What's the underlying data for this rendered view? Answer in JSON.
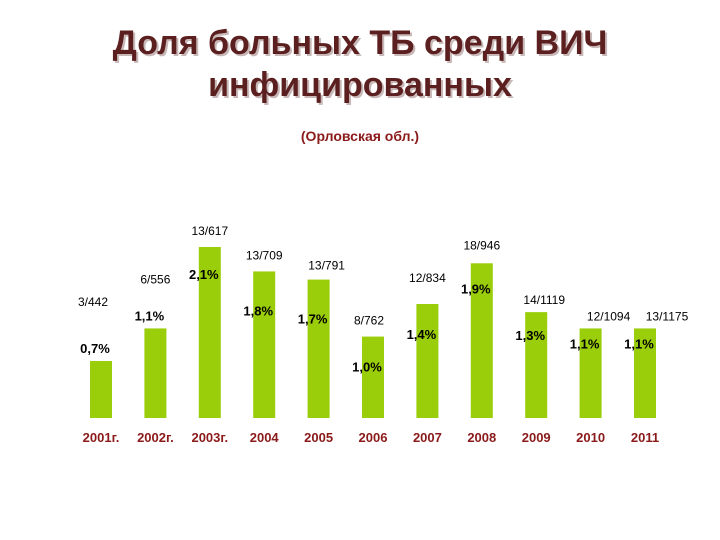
{
  "title_line1": "Доля больных ТБ среди ВИЧ",
  "title_line2": "инфицированных",
  "subtitle": "(Орловская обл.)",
  "colors": {
    "bar": "#9acd0a",
    "title": "#5b1f1f",
    "year": "#8b1a1a"
  },
  "chart_data": {
    "type": "bar",
    "categories": [
      "2001г.",
      "2002г.",
      "2003г.",
      "2004",
      "2005",
      "2006",
      "2007",
      "2008",
      "2009",
      "2010",
      "2011"
    ],
    "values": [
      0.7,
      1.1,
      2.1,
      1.8,
      1.7,
      1.0,
      1.4,
      1.9,
      1.3,
      1.1,
      1.1
    ],
    "value_labels": [
      "0,7%",
      "1,1%",
      "2,1%",
      "1,8%",
      "1,7%",
      "1,0%",
      "1,4%",
      "1,9%",
      "1,3%",
      "1,1%",
      "1,1%"
    ],
    "ratio_labels": [
      "3/442",
      "6/556",
      "13/617",
      "13/709",
      "13/791",
      "8/762",
      "12/834",
      "18/946",
      "14/1119",
      "12/1094",
      "13/1175"
    ],
    "ylim": [
      0,
      2.1
    ],
    "grid": false,
    "legend": "none"
  }
}
